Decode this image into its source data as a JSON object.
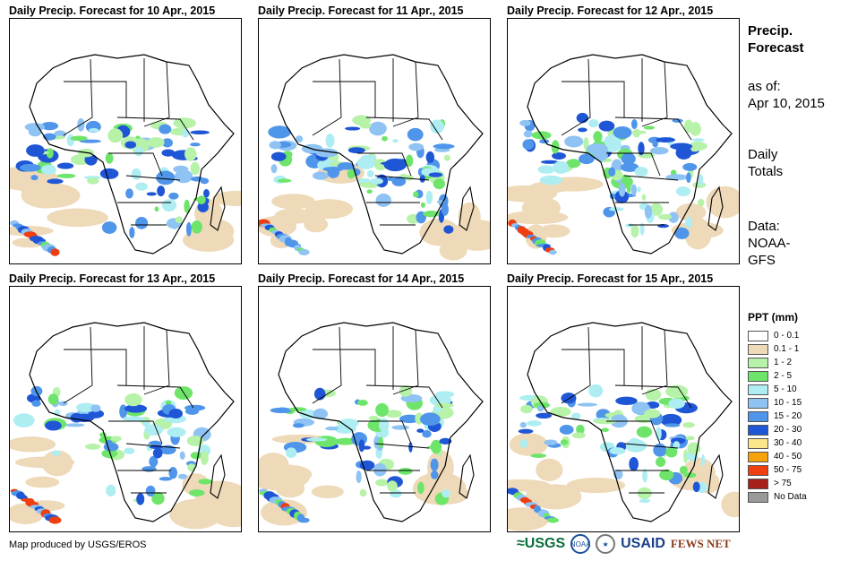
{
  "panels": [
    {
      "title": "Daily Precip. Forecast for 10 Apr., 2015",
      "wet": 1.0
    },
    {
      "title": "Daily Precip. Forecast for 11 Apr., 2015",
      "wet": 1.0
    },
    {
      "title": "Daily Precip. Forecast for 12 Apr., 2015",
      "wet": 1.2
    },
    {
      "title": "Daily Precip. Forecast for 13 Apr., 2015",
      "wet": 0.9
    },
    {
      "title": "Daily Precip. Forecast for 14 Apr., 2015",
      "wet": 0.9
    },
    {
      "title": "Daily Precip. Forecast for 15 Apr., 2015",
      "wet": 1.0
    }
  ],
  "side": {
    "title_line1": "Precip.",
    "title_line2": "Forecast",
    "asof_label": "as of:",
    "asof_date": "Apr 10, 2015",
    "totals_line1": "Daily",
    "totals_line2": "Totals",
    "data_line1": "Data:",
    "data_line2": "NOAA-",
    "data_line3": "GFS"
  },
  "legend": {
    "title": "PPT (mm)",
    "items": [
      {
        "label": "0 - 0.1",
        "color": "#ffffff"
      },
      {
        "label": "0.1 - 1",
        "color": "#eed9b8"
      },
      {
        "label": "1 - 2",
        "color": "#b6f2a8"
      },
      {
        "label": "2 - 5",
        "color": "#6ee56a"
      },
      {
        "label": "5 - 10",
        "color": "#aeeef2"
      },
      {
        "label": "10 - 15",
        "color": "#8ec3f3"
      },
      {
        "label": "15 - 20",
        "color": "#4f95ea"
      },
      {
        "label": "20 - 30",
        "color": "#1f56d6"
      },
      {
        "label": "30 - 40",
        "color": "#fbe68a"
      },
      {
        "label": "40 - 50",
        "color": "#f5a20c"
      },
      {
        "label": "50 - 75",
        "color": "#ef3e10"
      },
      {
        "label": "> 75",
        "color": "#a8201a"
      },
      {
        "label": "No Data",
        "color": "#999999"
      }
    ]
  },
  "footer": {
    "credit": "Map produced by USGS/EROS"
  },
  "logos": {
    "usgs": "≈USGS",
    "noaa": "NOAA",
    "usaid": "USAID",
    "fews": "FEWS NET"
  }
}
